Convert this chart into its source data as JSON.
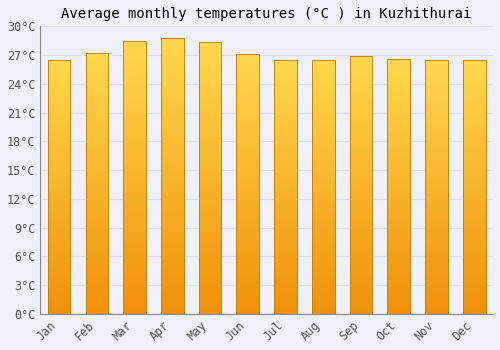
{
  "title": "Average monthly temperatures (°C ) in Kuzhithurai",
  "months": [
    "Jan",
    "Feb",
    "Mar",
    "Apr",
    "May",
    "Jun",
    "Jul",
    "Aug",
    "Sep",
    "Oct",
    "Nov",
    "Dec"
  ],
  "values": [
    26.5,
    27.2,
    28.5,
    28.8,
    28.4,
    27.1,
    26.5,
    26.5,
    26.9,
    26.6,
    26.5,
    26.5
  ],
  "ylim": [
    0,
    30
  ],
  "yticks": [
    0,
    3,
    6,
    9,
    12,
    15,
    18,
    21,
    24,
    27,
    30
  ],
  "bar_color_top": "#FFD84D",
  "bar_color_bottom": "#F0900A",
  "bar_edge_color": "#C8830A",
  "background_color": "#F0F0F8",
  "plot_bg_color": "#F0F0F8",
  "grid_color": "#DDDDEE",
  "title_fontsize": 10,
  "tick_fontsize": 8.5,
  "title_font": "monospace",
  "tick_font": "monospace",
  "bar_width": 0.6,
  "n_gradient_steps": 100
}
